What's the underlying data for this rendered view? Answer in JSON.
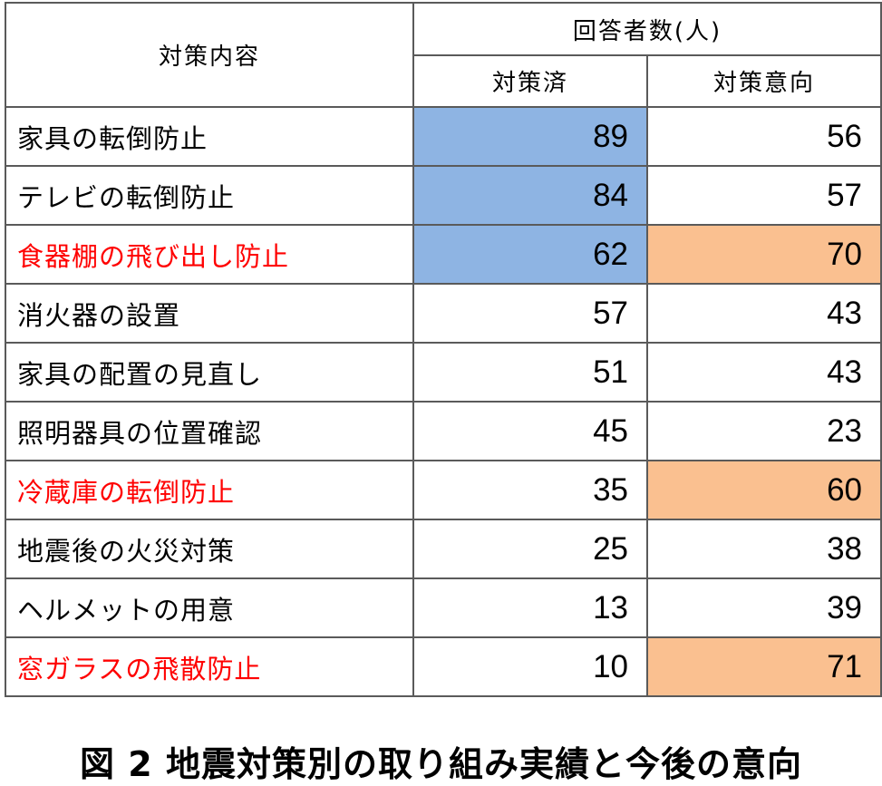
{
  "chart_data": {
    "type": "table",
    "title": "図 2 地震対策別の取り組み実績と今後の意向",
    "header": {
      "label_col": "対策内容",
      "group": "回答者数(人)",
      "col1": "対策済",
      "col2": "対策意向"
    },
    "rows": [
      {
        "label": "家具の転倒防止",
        "done": "89",
        "intent": "56",
        "label_color": "#000000",
        "done_bg": "#8eb4e3",
        "intent_bg": "#ffffff"
      },
      {
        "label": "テレビの転倒防止",
        "done": "84",
        "intent": "57",
        "label_color": "#000000",
        "done_bg": "#8eb4e3",
        "intent_bg": "#ffffff"
      },
      {
        "label": "食器棚の飛び出し防止",
        "done": "62",
        "intent": "70",
        "label_color": "#ff0000",
        "done_bg": "#8eb4e3",
        "intent_bg": "#fac090"
      },
      {
        "label": "消火器の設置",
        "done": "57",
        "intent": "43",
        "label_color": "#000000",
        "done_bg": "#ffffff",
        "intent_bg": "#ffffff"
      },
      {
        "label": "家具の配置の見直し",
        "done": "51",
        "intent": "43",
        "label_color": "#000000",
        "done_bg": "#ffffff",
        "intent_bg": "#ffffff"
      },
      {
        "label": "照明器具の位置確認",
        "done": "45",
        "intent": "23",
        "label_color": "#000000",
        "done_bg": "#ffffff",
        "intent_bg": "#ffffff"
      },
      {
        "label": "冷蔵庫の転倒防止",
        "done": "35",
        "intent": "60",
        "label_color": "#ff0000",
        "done_bg": "#ffffff",
        "intent_bg": "#fac090"
      },
      {
        "label": "地震後の火災対策",
        "done": "25",
        "intent": "38",
        "label_color": "#000000",
        "done_bg": "#ffffff",
        "intent_bg": "#ffffff"
      },
      {
        "label": "ヘルメットの用意",
        "done": "13",
        "intent": "39",
        "label_color": "#000000",
        "done_bg": "#ffffff",
        "intent_bg": "#ffffff"
      },
      {
        "label": "窓ガラスの飛散防止",
        "done": "10",
        "intent": "71",
        "label_color": "#ff0000",
        "done_bg": "#ffffff",
        "intent_bg": "#fac090"
      }
    ]
  },
  "caption": "図 2 地震対策別の取り組み実績と今後の意向"
}
